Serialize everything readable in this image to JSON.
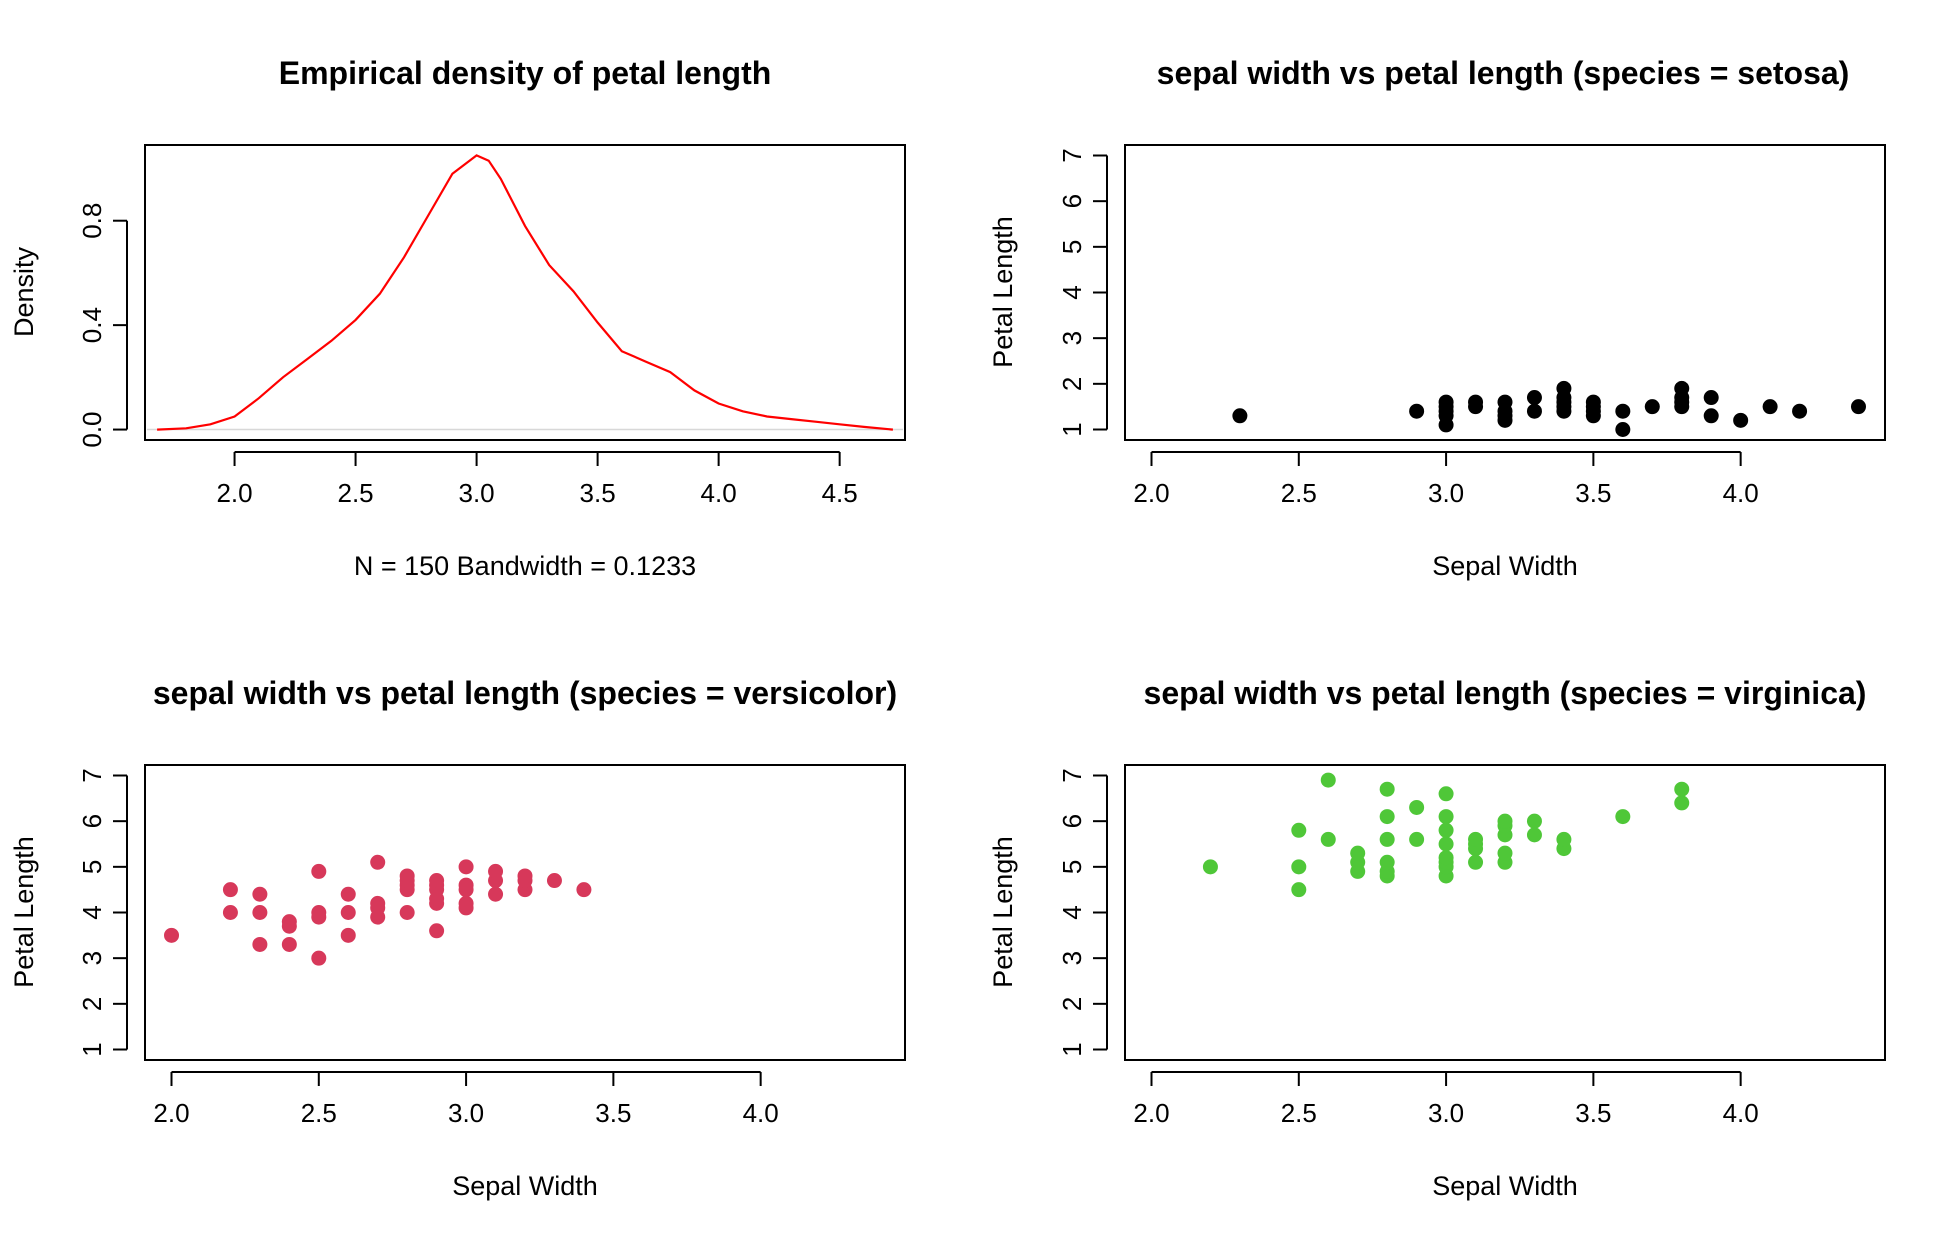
{
  "chart_data": [
    {
      "type": "line",
      "title": "Empirical density of petal length",
      "xlabel": "N = 150   Bandwidth = 0.1233",
      "ylabel": "Density",
      "xlim": [
        1.63,
        4.77
      ],
      "ylim": [
        -0.04,
        1.09
      ],
      "xticks": [
        "2.0",
        "2.5",
        "3.0",
        "3.5",
        "4.0",
        "4.5"
      ],
      "yticks": [
        "0.0",
        "0.4",
        "0.8"
      ],
      "color": "#ff0000",
      "series": [
        {
          "name": "density",
          "x": [
            1.68,
            1.8,
            1.9,
            2.0,
            2.1,
            2.2,
            2.3,
            2.4,
            2.5,
            2.6,
            2.7,
            2.8,
            2.9,
            3.0,
            3.05,
            3.1,
            3.2,
            3.3,
            3.4,
            3.5,
            3.6,
            3.7,
            3.8,
            3.9,
            4.0,
            4.1,
            4.2,
            4.3,
            4.4,
            4.5,
            4.6,
            4.72
          ],
          "y": [
            0.0,
            0.005,
            0.02,
            0.05,
            0.12,
            0.2,
            0.27,
            0.34,
            0.42,
            0.52,
            0.66,
            0.82,
            0.98,
            1.05,
            1.03,
            0.96,
            0.78,
            0.63,
            0.53,
            0.41,
            0.3,
            0.26,
            0.22,
            0.15,
            0.1,
            0.07,
            0.05,
            0.04,
            0.03,
            0.02,
            0.01,
            0.0
          ]
        }
      ]
    },
    {
      "type": "scatter",
      "title": "sepal width vs petal length (species = setosa)",
      "xlabel": "Sepal Width",
      "ylabel": "Petal Length",
      "xlim": [
        1.91,
        4.49
      ],
      "ylim": [
        0.77,
        7.23
      ],
      "xticks": [
        "2.0",
        "2.5",
        "3.0",
        "3.5",
        "4.0"
      ],
      "yticks": [
        "1",
        "2",
        "3",
        "4",
        "5",
        "6",
        "7"
      ],
      "color": "#000000",
      "x": [
        2.3,
        2.9,
        3.0,
        3.0,
        3.0,
        3.0,
        3.0,
        3.1,
        3.1,
        3.2,
        3.2,
        3.2,
        3.2,
        3.3,
        3.3,
        3.4,
        3.4,
        3.4,
        3.4,
        3.4,
        3.5,
        3.5,
        3.5,
        3.5,
        3.6,
        3.6,
        3.7,
        3.8,
        3.8,
        3.8,
        3.8,
        3.9,
        3.9,
        4.0,
        4.1,
        4.2,
        4.4
      ],
      "y": [
        1.3,
        1.4,
        1.1,
        1.3,
        1.4,
        1.5,
        1.6,
        1.5,
        1.6,
        1.2,
        1.3,
        1.4,
        1.6,
        1.4,
        1.7,
        1.4,
        1.5,
        1.6,
        1.7,
        1.9,
        1.3,
        1.4,
        1.5,
        1.6,
        1.0,
        1.4,
        1.5,
        1.5,
        1.6,
        1.7,
        1.9,
        1.3,
        1.7,
        1.2,
        1.5,
        1.4,
        1.5
      ]
    },
    {
      "type": "scatter",
      "title": "sepal width vs petal length (species = versicolor)",
      "xlabel": "Sepal Width",
      "ylabel": "Petal Length",
      "xlim": [
        1.91,
        4.49
      ],
      "ylim": [
        0.77,
        7.23
      ],
      "xticks": [
        "2.0",
        "2.5",
        "3.0",
        "3.5",
        "4.0"
      ],
      "yticks": [
        "1",
        "2",
        "3",
        "4",
        "5",
        "6",
        "7"
      ],
      "color": "#d7385a",
      "x": [
        2.0,
        2.2,
        2.2,
        2.3,
        2.3,
        2.3,
        2.4,
        2.4,
        2.4,
        2.5,
        2.5,
        2.5,
        2.5,
        2.6,
        2.6,
        2.6,
        2.7,
        2.7,
        2.7,
        2.7,
        2.8,
        2.8,
        2.8,
        2.8,
        2.8,
        2.9,
        2.9,
        2.9,
        2.9,
        2.9,
        2.9,
        3.0,
        3.0,
        3.0,
        3.0,
        3.0,
        3.1,
        3.1,
        3.1,
        3.2,
        3.2,
        3.2,
        3.3,
        3.4
      ],
      "y": [
        3.5,
        4.0,
        4.5,
        3.3,
        4.0,
        4.4,
        3.3,
        3.7,
        3.8,
        3.0,
        3.9,
        4.0,
        4.9,
        3.5,
        4.0,
        4.4,
        3.9,
        4.1,
        4.2,
        5.1,
        4.0,
        4.5,
        4.6,
        4.7,
        4.8,
        3.6,
        4.2,
        4.3,
        4.5,
        4.6,
        4.7,
        4.1,
        4.2,
        4.5,
        4.6,
        5.0,
        4.4,
        4.7,
        4.9,
        4.5,
        4.7,
        4.8,
        4.7,
        4.5
      ]
    },
    {
      "type": "scatter",
      "title": "sepal width vs petal length (species = virginica)",
      "xlabel": "Sepal Width",
      "ylabel": "Petal Length",
      "xlim": [
        1.91,
        4.49
      ],
      "ylim": [
        0.77,
        7.23
      ],
      "xticks": [
        "2.0",
        "2.5",
        "3.0",
        "3.5",
        "4.0"
      ],
      "yticks": [
        "1",
        "2",
        "3",
        "4",
        "5",
        "6",
        "7"
      ],
      "color": "#4fc738",
      "x": [
        2.2,
        2.5,
        2.5,
        2.5,
        2.6,
        2.6,
        2.7,
        2.7,
        2.7,
        2.8,
        2.8,
        2.8,
        2.8,
        2.8,
        2.8,
        2.9,
        2.9,
        3.0,
        3.0,
        3.0,
        3.0,
        3.0,
        3.0,
        3.0,
        3.0,
        3.1,
        3.1,
        3.1,
        3.1,
        3.2,
        3.2,
        3.2,
        3.2,
        3.2,
        3.3,
        3.3,
        3.4,
        3.4,
        3.6,
        3.8,
        3.8
      ],
      "y": [
        5.0,
        4.5,
        5.0,
        5.8,
        5.6,
        6.9,
        4.9,
        5.1,
        5.3,
        4.8,
        4.9,
        5.1,
        5.6,
        6.1,
        6.7,
        5.6,
        6.3,
        4.8,
        5.0,
        5.1,
        5.2,
        5.5,
        5.8,
        6.1,
        6.6,
        5.1,
        5.4,
        5.5,
        5.6,
        5.1,
        5.3,
        5.7,
        5.9,
        6.0,
        5.7,
        6.0,
        5.4,
        5.6,
        6.1,
        6.4,
        6.7
      ]
    }
  ]
}
